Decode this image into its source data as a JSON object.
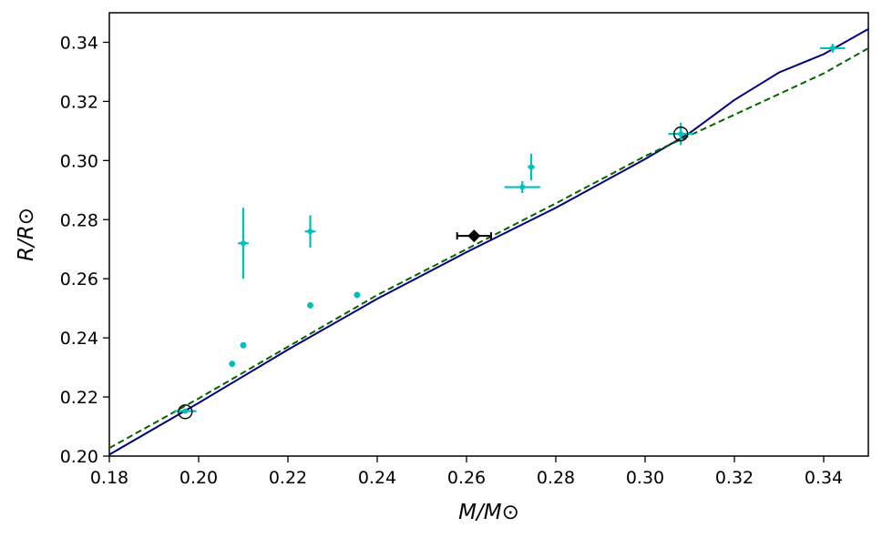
{
  "chart_data": {
    "type": "scatter",
    "xlabel": "M/M⊙",
    "ylabel": "R/R⊙",
    "xlim": [
      0.18,
      0.35
    ],
    "ylim": [
      0.2,
      0.35
    ],
    "xticks": [
      "0.18",
      "0.20",
      "0.22",
      "0.24",
      "0.26",
      "0.28",
      "0.30",
      "0.32",
      "0.34"
    ],
    "yticks": [
      "0.20",
      "0.22",
      "0.24",
      "0.26",
      "0.28",
      "0.30",
      "0.32",
      "0.34"
    ],
    "grid": false,
    "legend": "none",
    "colors": {
      "solid_model": "#00007f",
      "dashed_model": "#006400",
      "points": "#00bfbf",
      "highlight": "#000000"
    },
    "series": [
      {
        "kind": "line",
        "style": "solid",
        "color": "#00007f",
        "points": [
          [
            0.18,
            0.2005
          ],
          [
            0.2,
            0.218
          ],
          [
            0.22,
            0.236
          ],
          [
            0.24,
            0.2532
          ],
          [
            0.26,
            0.269
          ],
          [
            0.28,
            0.284
          ],
          [
            0.3,
            0.3005
          ],
          [
            0.31,
            0.3093
          ],
          [
            0.32,
            0.3205
          ],
          [
            0.33,
            0.3298
          ],
          [
            0.34,
            0.336
          ],
          [
            0.35,
            0.3445
          ]
        ]
      },
      {
        "kind": "line",
        "style": "dashed",
        "color": "#006400",
        "points": [
          [
            0.18,
            0.2027
          ],
          [
            0.2,
            0.2195
          ],
          [
            0.22,
            0.237
          ],
          [
            0.24,
            0.2545
          ],
          [
            0.26,
            0.27
          ],
          [
            0.28,
            0.2855
          ],
          [
            0.3,
            0.3015
          ],
          [
            0.32,
            0.3155
          ],
          [
            0.34,
            0.3295
          ],
          [
            0.35,
            0.338
          ]
        ]
      },
      {
        "kind": "errorbar",
        "color": "#00bfbf",
        "points": [
          {
            "x": 0.21,
            "y": 0.272,
            "xerr": 0.0012,
            "yerr": 0.012
          },
          {
            "x": 0.225,
            "y": 0.276,
            "xerr": 0.0012,
            "yerr": 0.0055
          },
          {
            "x": 0.2725,
            "y": 0.291,
            "xerr": 0.004,
            "yerr": 0.002
          },
          {
            "x": 0.2745,
            "y": 0.2978,
            "xerr": 0.0008,
            "yerr": 0.0045
          },
          {
            "x": 0.197,
            "y": 0.2152,
            "xerr": 0.0025,
            "yerr": 0.0005
          },
          {
            "x": 0.308,
            "y": 0.309,
            "xerr": 0.0028,
            "yerr": 0.0038
          },
          {
            "x": 0.342,
            "y": 0.338,
            "xerr": 0.0028,
            "yerr": 0.0015
          }
        ]
      },
      {
        "kind": "dots",
        "color": "#00bfbf",
        "points": [
          [
            0.2075,
            0.2312
          ],
          [
            0.21,
            0.2375
          ],
          [
            0.225,
            0.251
          ],
          [
            0.2355,
            0.2545
          ]
        ]
      },
      {
        "kind": "open-circles",
        "color": "#000000",
        "points": [
          [
            0.197,
            0.215
          ],
          [
            0.308,
            0.309
          ]
        ]
      },
      {
        "kind": "highlight",
        "color": "#000000",
        "points": [
          {
            "x": 0.2617,
            "y": 0.2745,
            "xerr": 0.0038,
            "yerr": 0.0012
          }
        ]
      }
    ]
  }
}
